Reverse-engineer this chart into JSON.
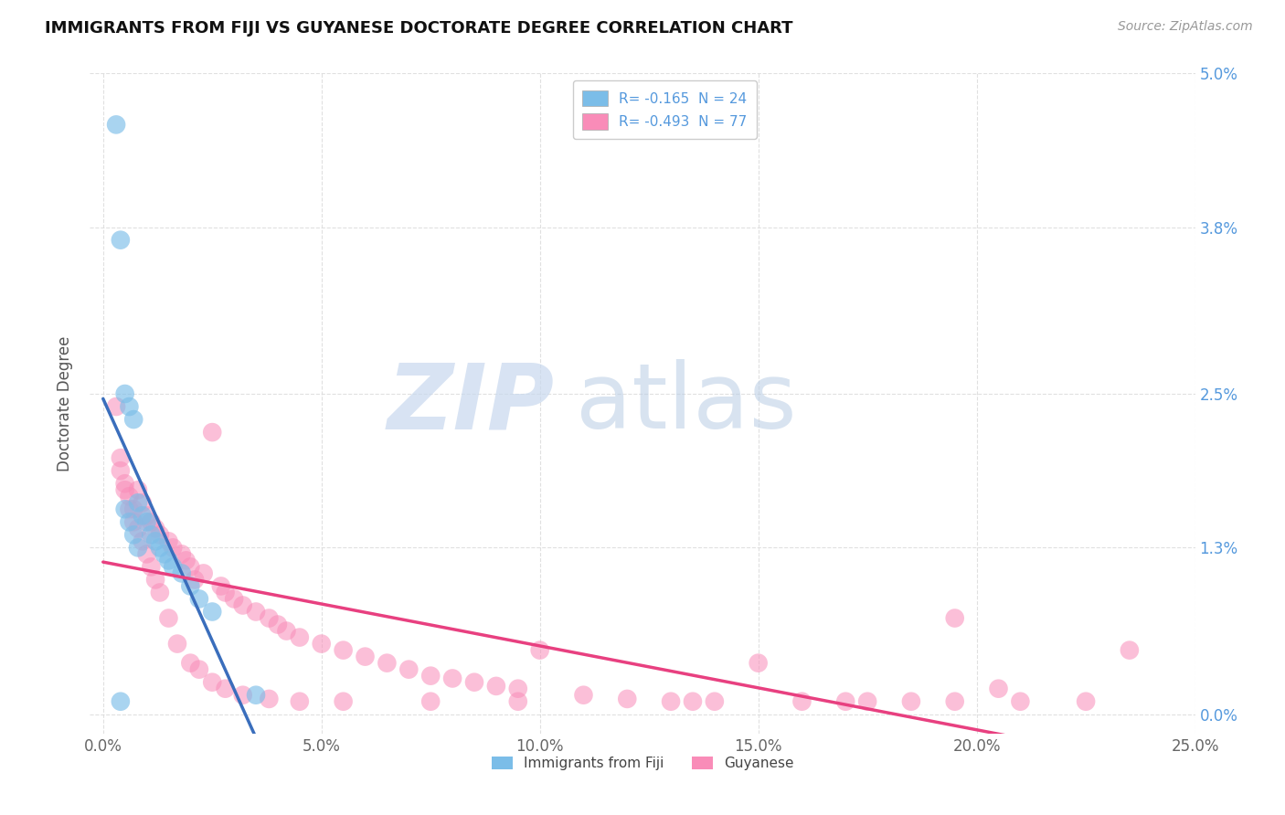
{
  "title": "IMMIGRANTS FROM FIJI VS GUYANESE DOCTORATE DEGREE CORRELATION CHART",
  "source_text": "Source: ZipAtlas.com",
  "ylabel": "Doctorate Degree",
  "xlabel": "",
  "x_tick_labels": [
    "0.0%",
    "5.0%",
    "10.0%",
    "15.0%",
    "20.0%",
    "25.0%"
  ],
  "x_tick_values": [
    0.0,
    5.0,
    10.0,
    15.0,
    20.0,
    25.0
  ],
  "y_tick_labels": [
    "0.0%",
    "1.3%",
    "2.5%",
    "3.8%",
    "5.0%"
  ],
  "y_tick_values": [
    0.0,
    1.3,
    2.5,
    3.8,
    5.0
  ],
  "xlim": [
    -0.3,
    25.0
  ],
  "ylim": [
    -0.15,
    5.0
  ],
  "legend_entry1": "R= -0.165  N = 24",
  "legend_entry2": "R= -0.493  N = 77",
  "legend_label1": "Immigrants from Fiji",
  "legend_label2": "Guyanese",
  "color1": "#7bbde8",
  "color2": "#f98cb8",
  "line_color1": "#3a6ebc",
  "line_color2": "#e84080",
  "background_color": "#ffffff",
  "grid_color": "#dddddd",
  "fiji_scatter_x": [
    0.3,
    0.4,
    0.5,
    0.6,
    0.7,
    0.8,
    0.9,
    1.0,
    1.1,
    1.2,
    1.3,
    1.4,
    1.5,
    1.6,
    1.8,
    2.0,
    2.2,
    2.5,
    0.5,
    0.6,
    0.7,
    0.8,
    3.5,
    0.4
  ],
  "fiji_scatter_y": [
    4.6,
    3.7,
    2.5,
    2.4,
    2.3,
    1.65,
    1.55,
    1.5,
    1.4,
    1.35,
    1.3,
    1.25,
    1.2,
    1.15,
    1.1,
    1.0,
    0.9,
    0.8,
    1.6,
    1.5,
    1.4,
    1.3,
    0.15,
    0.1
  ],
  "guyanese_scatter_x": [
    0.3,
    0.4,
    0.5,
    0.6,
    0.7,
    0.8,
    0.9,
    1.0,
    1.1,
    1.2,
    1.3,
    1.5,
    1.6,
    1.8,
    1.9,
    2.0,
    2.1,
    2.3,
    2.5,
    2.7,
    2.8,
    3.0,
    3.2,
    3.5,
    3.8,
    4.0,
    4.2,
    4.5,
    5.0,
    5.5,
    6.0,
    6.5,
    7.0,
    7.5,
    8.0,
    8.5,
    9.0,
    9.5,
    10.0,
    11.0,
    12.0,
    13.0,
    14.0,
    15.0,
    16.0,
    17.0,
    18.5,
    19.5,
    20.5,
    21.0,
    23.5,
    0.4,
    0.5,
    0.6,
    0.7,
    0.8,
    0.9,
    1.0,
    1.1,
    1.2,
    1.3,
    1.5,
    1.7,
    2.0,
    2.2,
    2.5,
    2.8,
    3.2,
    3.8,
    4.5,
    5.5,
    7.5,
    9.5,
    13.5,
    17.5,
    19.5,
    22.5
  ],
  "guyanese_scatter_y": [
    2.4,
    2.0,
    1.8,
    1.7,
    1.6,
    1.75,
    1.65,
    1.55,
    1.5,
    1.45,
    1.4,
    1.35,
    1.3,
    1.25,
    1.2,
    1.15,
    1.05,
    1.1,
    2.2,
    1.0,
    0.95,
    0.9,
    0.85,
    0.8,
    0.75,
    0.7,
    0.65,
    0.6,
    0.55,
    0.5,
    0.45,
    0.4,
    0.35,
    0.3,
    0.28,
    0.25,
    0.22,
    0.2,
    0.5,
    0.15,
    0.12,
    0.1,
    0.1,
    0.4,
    0.1,
    0.1,
    0.1,
    0.75,
    0.2,
    0.1,
    0.5,
    1.9,
    1.75,
    1.6,
    1.5,
    1.45,
    1.35,
    1.25,
    1.15,
    1.05,
    0.95,
    0.75,
    0.55,
    0.4,
    0.35,
    0.25,
    0.2,
    0.15,
    0.12,
    0.1,
    0.1,
    0.1,
    0.1,
    0.1,
    0.1,
    0.1,
    0.1
  ]
}
